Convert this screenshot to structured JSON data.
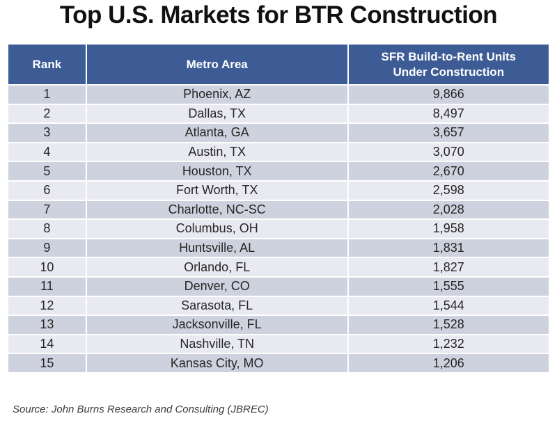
{
  "title": "Top U.S. Markets for BTR Construction",
  "source_note": "Source: John Burns Research and Consulting (JBREC)",
  "colors": {
    "header_bg": "#3D5C96",
    "header_text": "#FFFFFF",
    "row_odd_bg": "#CED2DF",
    "row_even_bg": "#E9EAF1",
    "body_text": "#262626",
    "title_text": "#111111"
  },
  "table": {
    "columns": [
      "Rank",
      "Metro Area",
      "SFR Build-to-Rent Units Under Construction"
    ],
    "rows": [
      [
        "1",
        "Phoenix, AZ",
        "9,866"
      ],
      [
        "2",
        "Dallas, TX",
        "8,497"
      ],
      [
        "3",
        "Atlanta, GA",
        "3,657"
      ],
      [
        "4",
        "Austin, TX",
        "3,070"
      ],
      [
        "5",
        "Houston, TX",
        "2,670"
      ],
      [
        "6",
        "Fort Worth, TX",
        "2,598"
      ],
      [
        "7",
        "Charlotte, NC-SC",
        "2,028"
      ],
      [
        "8",
        "Columbus, OH",
        "1,958"
      ],
      [
        "9",
        "Huntsville, AL",
        "1,831"
      ],
      [
        "10",
        "Orlando, FL",
        "1,827"
      ],
      [
        "11",
        "Denver, CO",
        "1,555"
      ],
      [
        "12",
        "Sarasota, FL",
        "1,544"
      ],
      [
        "13",
        "Jacksonville, FL",
        "1,528"
      ],
      [
        "14",
        "Nashville, TN",
        "1,232"
      ],
      [
        "15",
        "Kansas City, MO",
        "1,206"
      ]
    ]
  },
  "chart_data": {
    "type": "table",
    "title": "Top U.S. Markets for BTR Construction",
    "columns": [
      "Rank",
      "Metro Area",
      "SFR Build-to-Rent Units Under Construction"
    ],
    "categories": [
      "Phoenix, AZ",
      "Dallas, TX",
      "Atlanta, GA",
      "Austin, TX",
      "Houston, TX",
      "Fort Worth, TX",
      "Charlotte, NC-SC",
      "Columbus, OH",
      "Huntsville, AL",
      "Orlando, FL",
      "Denver, CO",
      "Sarasota, FL",
      "Jacksonville, FL",
      "Nashville, TN",
      "Kansas City, MO"
    ],
    "values": [
      9866,
      8497,
      3657,
      3070,
      2670,
      2598,
      2028,
      1958,
      1831,
      1827,
      1555,
      1544,
      1528,
      1232,
      1206
    ],
    "value_label": "SFR Build-to-Rent Units Under Construction",
    "source": "Source: John Burns Research and Consulting (JBREC)"
  }
}
